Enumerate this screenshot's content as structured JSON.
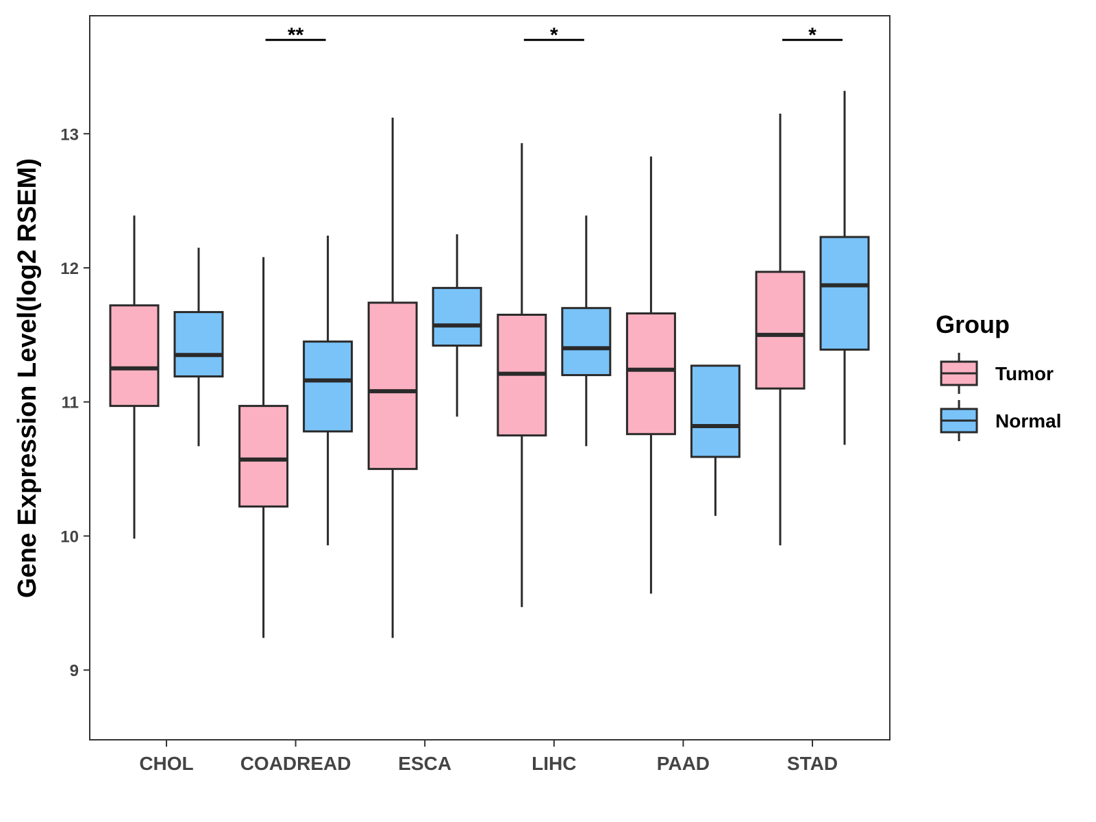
{
  "chart_data": {
    "type": "boxplot",
    "title": "",
    "xlabel": "",
    "ylabel": "Gene Expression Level(log2 RSEM)",
    "ylim": [
      8.48,
      13.88
    ],
    "yticks": [
      9,
      10,
      11,
      12,
      13
    ],
    "grid": false,
    "categories": [
      "CHOL",
      "COADREAD",
      "ESCA",
      "LIHC",
      "PAAD",
      "STAD"
    ],
    "legend": {
      "title": "Group",
      "position": "right",
      "entries": [
        "Tumor",
        "Normal"
      ]
    },
    "colors": {
      "Tumor": "#fbb1c1",
      "Normal": "#79c3f9",
      "outline": "#2a2a2a",
      "panel_border": "#333333"
    },
    "series": [
      {
        "name": "Tumor",
        "boxes": [
          {
            "category": "CHOL",
            "min": 9.98,
            "q1": 10.97,
            "median": 11.25,
            "q3": 11.72,
            "max": 12.39
          },
          {
            "category": "COADREAD",
            "min": 9.24,
            "q1": 10.22,
            "median": 10.57,
            "q3": 10.97,
            "max": 12.08
          },
          {
            "category": "ESCA",
            "min": 9.24,
            "q1": 10.5,
            "median": 11.08,
            "q3": 11.74,
            "max": 13.12
          },
          {
            "category": "LIHC",
            "min": 9.47,
            "q1": 10.75,
            "median": 11.21,
            "q3": 11.65,
            "max": 12.93
          },
          {
            "category": "PAAD",
            "min": 9.57,
            "q1": 10.76,
            "median": 11.24,
            "q3": 11.66,
            "max": 12.83
          },
          {
            "category": "STAD",
            "min": 9.93,
            "q1": 11.1,
            "median": 11.5,
            "q3": 11.97,
            "max": 13.15
          }
        ]
      },
      {
        "name": "Normal",
        "boxes": [
          {
            "category": "CHOL",
            "min": 10.67,
            "q1": 11.19,
            "median": 11.35,
            "q3": 11.67,
            "max": 12.15
          },
          {
            "category": "COADREAD",
            "min": 9.93,
            "q1": 10.78,
            "median": 11.16,
            "q3": 11.45,
            "max": 12.24
          },
          {
            "category": "ESCA",
            "min": 10.89,
            "q1": 11.42,
            "median": 11.57,
            "q3": 11.85,
            "max": 12.25
          },
          {
            "category": "LIHC",
            "min": 10.67,
            "q1": 11.2,
            "median": 11.4,
            "q3": 11.7,
            "max": 12.39
          },
          {
            "category": "PAAD",
            "min": 10.15,
            "q1": 10.59,
            "median": 10.82,
            "q3": 11.27,
            "max": 11.27
          },
          {
            "category": "STAD",
            "min": 10.68,
            "q1": 11.39,
            "median": 11.87,
            "q3": 12.23,
            "max": 13.32
          }
        ]
      }
    ],
    "significance": [
      {
        "category": "COADREAD",
        "label": "**",
        "y": 13.7
      },
      {
        "category": "LIHC",
        "label": "*",
        "y": 13.7
      },
      {
        "category": "STAD",
        "label": "*",
        "y": 13.7
      }
    ]
  }
}
